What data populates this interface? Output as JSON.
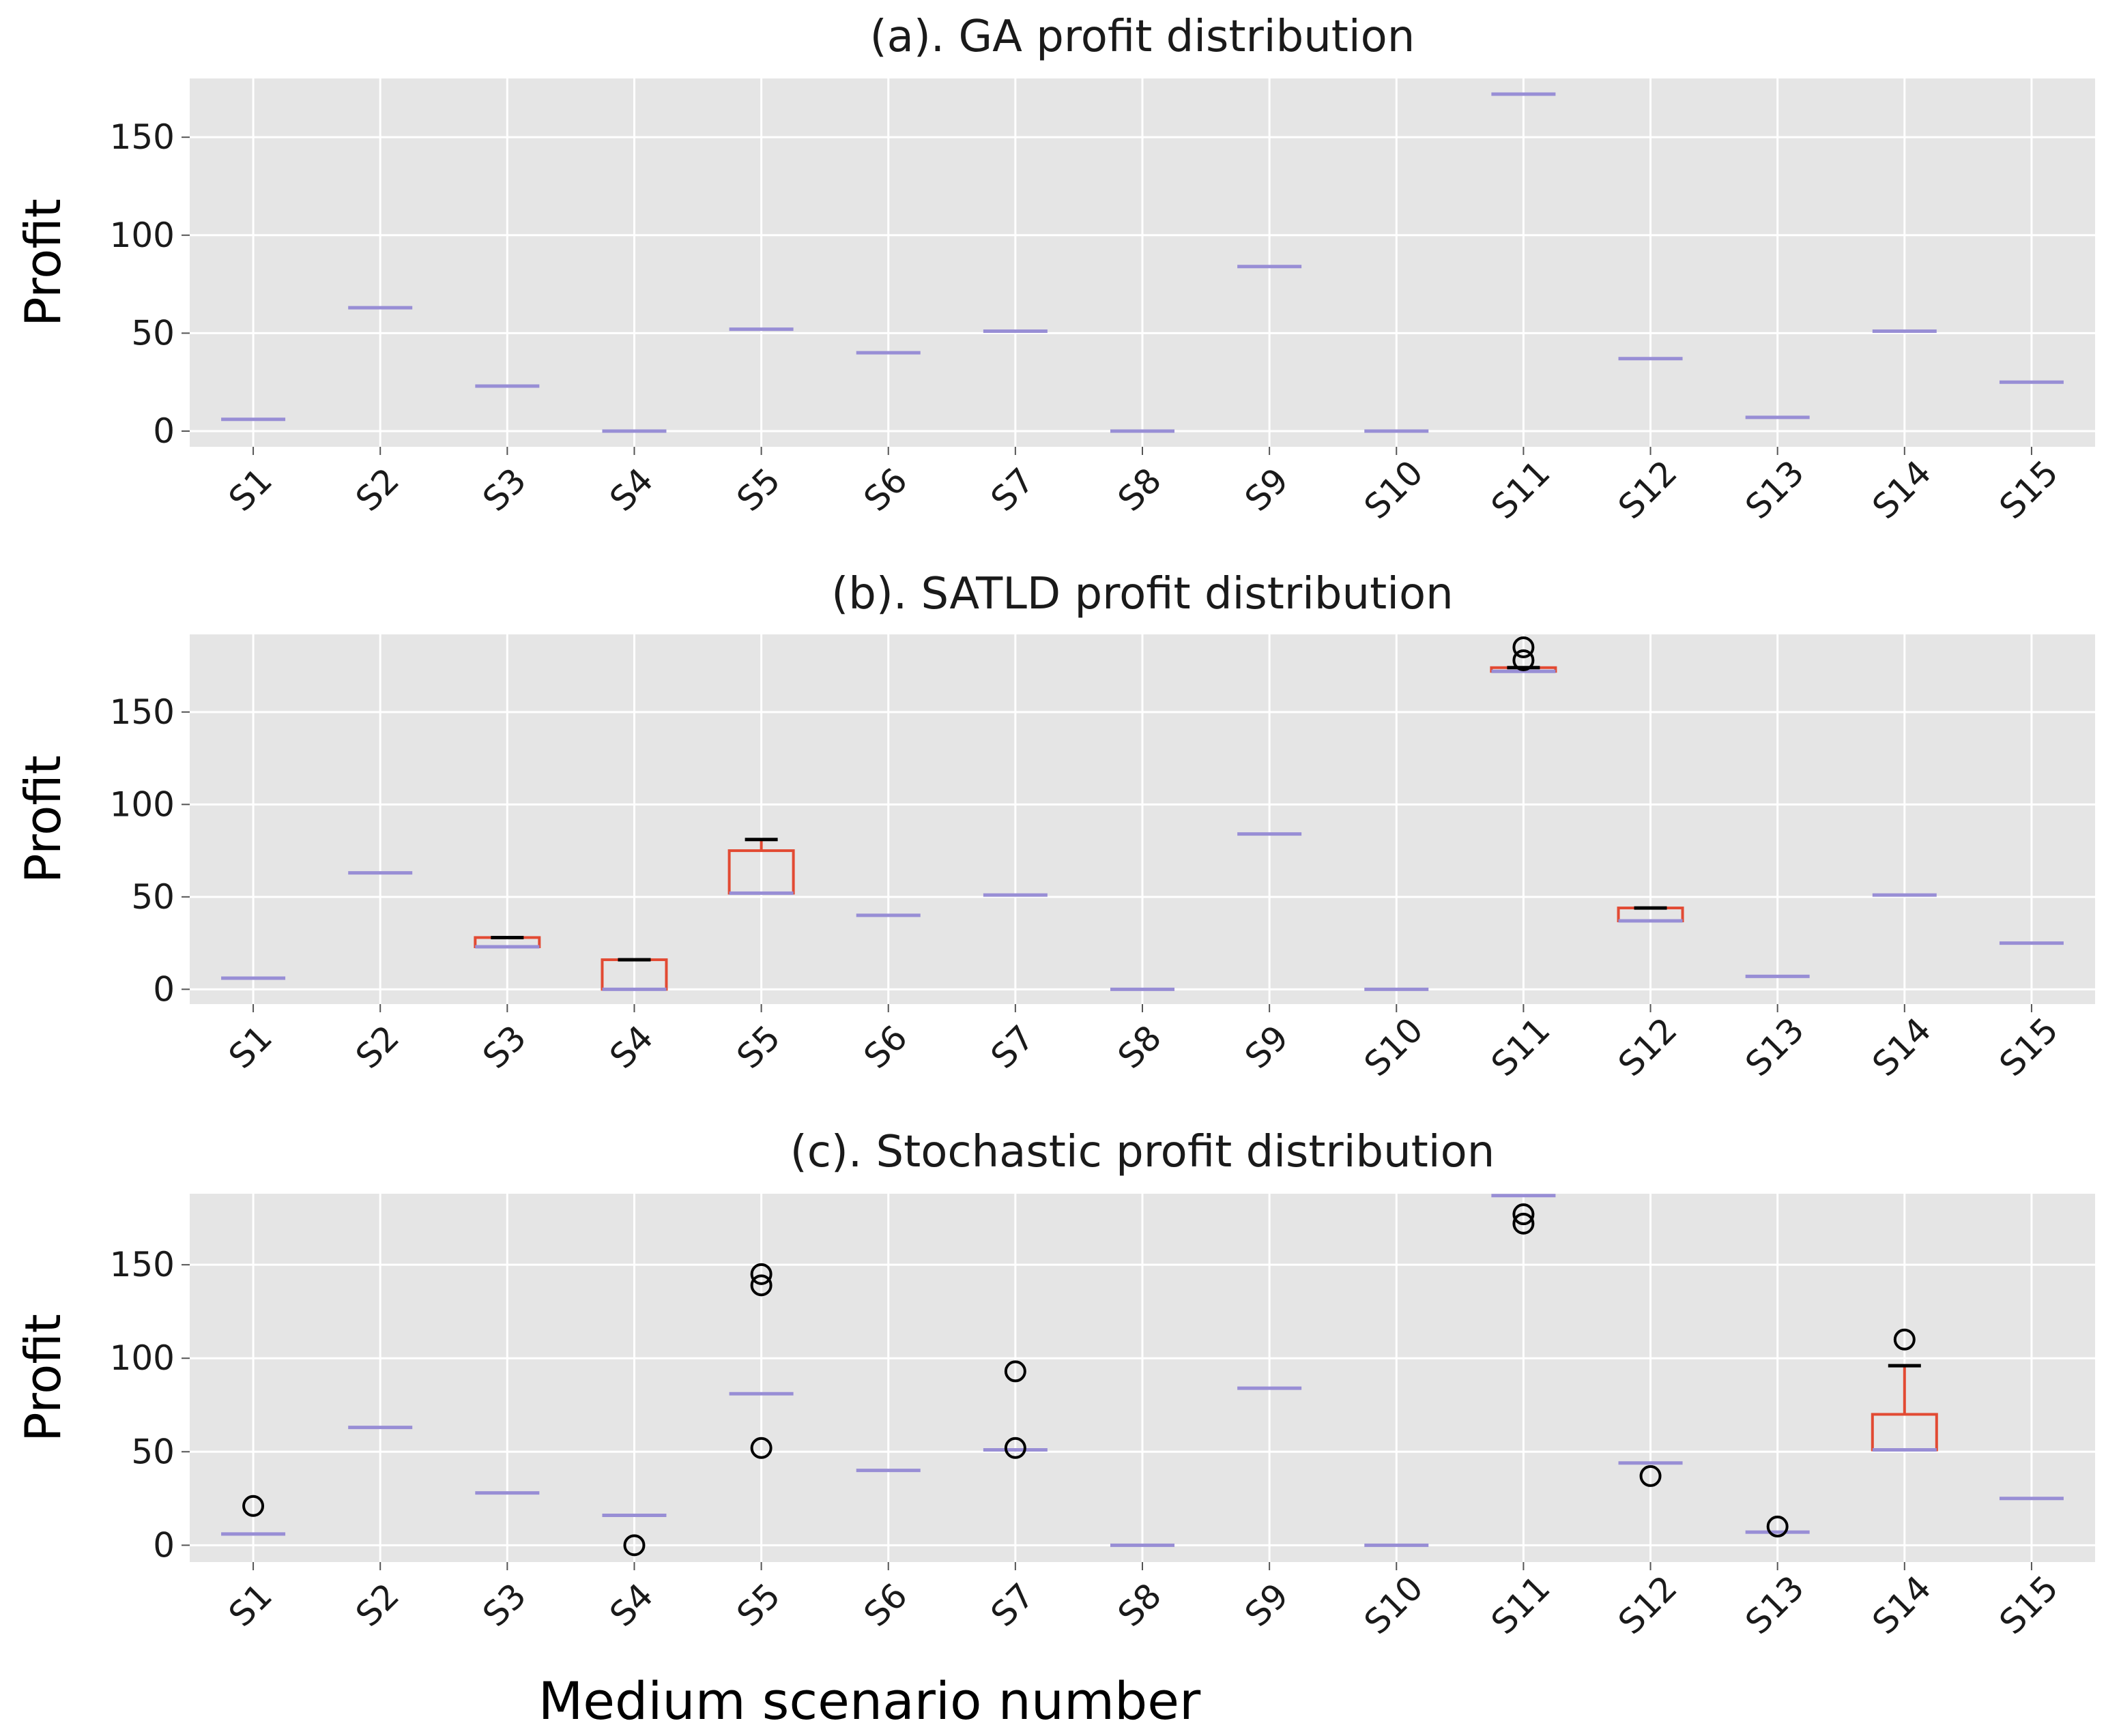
{
  "figure": {
    "xlabel": "Medium scenario number"
  },
  "colors": {
    "panel_bg": "#e5e5e5",
    "grid": "#ffffff",
    "box": "#e24a33",
    "median": "#988ed5",
    "cap": "#000000",
    "flier": "#000000",
    "text": "#1a1a1a"
  },
  "chart_data": [
    {
      "type": "box",
      "title": "(a). GA profit distribution",
      "ylabel": "Profit",
      "ylim": [
        -8,
        180
      ],
      "yticks": [
        0,
        50,
        100,
        150
      ],
      "categories": [
        "S1",
        "S2",
        "S3",
        "S4",
        "S5",
        "S6",
        "S7",
        "S8",
        "S9",
        "S10",
        "S11",
        "S12",
        "S13",
        "S14",
        "S15"
      ],
      "boxes": [
        {
          "q1": 6,
          "median": 6,
          "q3": 6,
          "whisker_low": 6,
          "whisker_high": 6,
          "fliers": []
        },
        {
          "q1": 63,
          "median": 63,
          "q3": 63,
          "whisker_low": 63,
          "whisker_high": 63,
          "fliers": []
        },
        {
          "q1": 23,
          "median": 23,
          "q3": 23,
          "whisker_low": 23,
          "whisker_high": 23,
          "fliers": []
        },
        {
          "q1": 0,
          "median": 0,
          "q3": 0,
          "whisker_low": 0,
          "whisker_high": 0,
          "fliers": []
        },
        {
          "q1": 52,
          "median": 52,
          "q3": 52,
          "whisker_low": 52,
          "whisker_high": 52,
          "fliers": []
        },
        {
          "q1": 40,
          "median": 40,
          "q3": 40,
          "whisker_low": 40,
          "whisker_high": 40,
          "fliers": []
        },
        {
          "q1": 51,
          "median": 51,
          "q3": 51,
          "whisker_low": 51,
          "whisker_high": 51,
          "fliers": []
        },
        {
          "q1": 0,
          "median": 0,
          "q3": 0,
          "whisker_low": 0,
          "whisker_high": 0,
          "fliers": []
        },
        {
          "q1": 84,
          "median": 84,
          "q3": 84,
          "whisker_low": 84,
          "whisker_high": 84,
          "fliers": []
        },
        {
          "q1": 0,
          "median": 0,
          "q3": 0,
          "whisker_low": 0,
          "whisker_high": 0,
          "fliers": []
        },
        {
          "q1": 172,
          "median": 172,
          "q3": 172,
          "whisker_low": 172,
          "whisker_high": 172,
          "fliers": []
        },
        {
          "q1": 37,
          "median": 37,
          "q3": 37,
          "whisker_low": 37,
          "whisker_high": 37,
          "fliers": []
        },
        {
          "q1": 7,
          "median": 7,
          "q3": 7,
          "whisker_low": 7,
          "whisker_high": 7,
          "fliers": []
        },
        {
          "q1": 51,
          "median": 51,
          "q3": 51,
          "whisker_low": 51,
          "whisker_high": 51,
          "fliers": []
        },
        {
          "q1": 25,
          "median": 25,
          "q3": 25,
          "whisker_low": 25,
          "whisker_high": 25,
          "fliers": []
        }
      ]
    },
    {
      "type": "box",
      "title": "(b). SATLD profit distribution",
      "ylabel": "Profit",
      "ylim": [
        -8,
        192
      ],
      "yticks": [
        0,
        50,
        100,
        150
      ],
      "categories": [
        "S1",
        "S2",
        "S3",
        "S4",
        "S5",
        "S6",
        "S7",
        "S8",
        "S9",
        "S10",
        "S11",
        "S12",
        "S13",
        "S14",
        "S15"
      ],
      "boxes": [
        {
          "q1": 6,
          "median": 6,
          "q3": 6,
          "whisker_low": 6,
          "whisker_high": 6,
          "fliers": []
        },
        {
          "q1": 63,
          "median": 63,
          "q3": 63,
          "whisker_low": 63,
          "whisker_high": 63,
          "fliers": []
        },
        {
          "q1": 23,
          "median": 23,
          "q3": 28,
          "whisker_low": 23,
          "whisker_high": 28,
          "fliers": []
        },
        {
          "q1": 0,
          "median": 0,
          "q3": 16,
          "whisker_low": 0,
          "whisker_high": 16,
          "fliers": []
        },
        {
          "q1": 52,
          "median": 52,
          "q3": 75,
          "whisker_low": 52,
          "whisker_high": 81,
          "fliers": []
        },
        {
          "q1": 40,
          "median": 40,
          "q3": 40,
          "whisker_low": 40,
          "whisker_high": 40,
          "fliers": []
        },
        {
          "q1": 51,
          "median": 51,
          "q3": 51,
          "whisker_low": 51,
          "whisker_high": 51,
          "fliers": []
        },
        {
          "q1": 0,
          "median": 0,
          "q3": 0,
          "whisker_low": 0,
          "whisker_high": 0,
          "fliers": []
        },
        {
          "q1": 84,
          "median": 84,
          "q3": 84,
          "whisker_low": 84,
          "whisker_high": 84,
          "fliers": []
        },
        {
          "q1": 0,
          "median": 0,
          "q3": 0,
          "whisker_low": 0,
          "whisker_high": 0,
          "fliers": []
        },
        {
          "q1": 172,
          "median": 172,
          "q3": 174,
          "whisker_low": 172,
          "whisker_high": 174,
          "fliers": [
            178,
            185
          ]
        },
        {
          "q1": 37,
          "median": 37,
          "q3": 44,
          "whisker_low": 37,
          "whisker_high": 44,
          "fliers": []
        },
        {
          "q1": 7,
          "median": 7,
          "q3": 7,
          "whisker_low": 7,
          "whisker_high": 7,
          "fliers": []
        },
        {
          "q1": 51,
          "median": 51,
          "q3": 51,
          "whisker_low": 51,
          "whisker_high": 51,
          "fliers": []
        },
        {
          "q1": 25,
          "median": 25,
          "q3": 25,
          "whisker_low": 25,
          "whisker_high": 25,
          "fliers": []
        }
      ]
    },
    {
      "type": "box",
      "title": "(c). Stochastic profit distribution",
      "ylabel": "Profit",
      "ylim": [
        -9,
        188
      ],
      "yticks": [
        0,
        50,
        100,
        150
      ],
      "categories": [
        "S1",
        "S2",
        "S3",
        "S4",
        "S5",
        "S6",
        "S7",
        "S8",
        "S9",
        "S10",
        "S11",
        "S12",
        "S13",
        "S14",
        "S15"
      ],
      "boxes": [
        {
          "q1": 6,
          "median": 6,
          "q3": 6,
          "whisker_low": 6,
          "whisker_high": 6,
          "fliers": [
            21
          ]
        },
        {
          "q1": 63,
          "median": 63,
          "q3": 63,
          "whisker_low": 63,
          "whisker_high": 63,
          "fliers": []
        },
        {
          "q1": 28,
          "median": 28,
          "q3": 28,
          "whisker_low": 28,
          "whisker_high": 28,
          "fliers": []
        },
        {
          "q1": 16,
          "median": 16,
          "q3": 16,
          "whisker_low": 16,
          "whisker_high": 16,
          "fliers": [
            0
          ]
        },
        {
          "q1": 81,
          "median": 81,
          "q3": 81,
          "whisker_low": 81,
          "whisker_high": 81,
          "fliers": [
            52,
            139,
            145
          ]
        },
        {
          "q1": 40,
          "median": 40,
          "q3": 40,
          "whisker_low": 40,
          "whisker_high": 40,
          "fliers": []
        },
        {
          "q1": 51,
          "median": 51,
          "q3": 51,
          "whisker_low": 51,
          "whisker_high": 51,
          "fliers": [
            52,
            93
          ]
        },
        {
          "q1": 0,
          "median": 0,
          "q3": 0,
          "whisker_low": 0,
          "whisker_high": 0,
          "fliers": []
        },
        {
          "q1": 84,
          "median": 84,
          "q3": 84,
          "whisker_low": 84,
          "whisker_high": 84,
          "fliers": []
        },
        {
          "q1": 0,
          "median": 0,
          "q3": 0,
          "whisker_low": 0,
          "whisker_high": 0,
          "fliers": []
        },
        {
          "q1": 187,
          "median": 187,
          "q3": 187,
          "whisker_low": 187,
          "whisker_high": 187,
          "fliers": [
            172,
            177
          ]
        },
        {
          "q1": 44,
          "median": 44,
          "q3": 44,
          "whisker_low": 44,
          "whisker_high": 44,
          "fliers": [
            37
          ]
        },
        {
          "q1": 7,
          "median": 7,
          "q3": 7,
          "whisker_low": 7,
          "whisker_high": 7,
          "fliers": [
            10
          ]
        },
        {
          "q1": 51,
          "median": 51,
          "q3": 70,
          "whisker_low": 51,
          "whisker_high": 96,
          "fliers": [
            110
          ]
        },
        {
          "q1": 25,
          "median": 25,
          "q3": 25,
          "whisker_low": 25,
          "whisker_high": 25,
          "fliers": []
        }
      ]
    }
  ]
}
